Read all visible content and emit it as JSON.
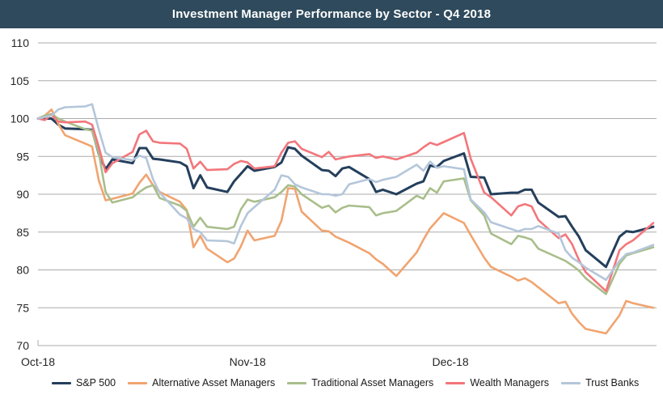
{
  "title": "Investment Manager Performance by Sector - Q4 2018",
  "colors": {
    "title_bar_bg": "#2E4A5C",
    "title_text": "#ffffff",
    "grid": "#ABABAB",
    "axis_text": "#262626"
  },
  "chart_data": {
    "type": "line",
    "title": "Investment Manager Performance by Sector - Q4 2018",
    "xlabel": "",
    "ylabel": "",
    "grid": "horizontal",
    "legend_position": "bottom",
    "y_axis": {
      "min": 70,
      "max": 110,
      "ticks": [
        110,
        105,
        100,
        95,
        90,
        85,
        80,
        75,
        70
      ]
    },
    "x_axis": {
      "ticks": [
        {
          "date": "2018-10-01",
          "label": "Oct-18"
        },
        {
          "date": "2018-11-01",
          "label": "Nov-18"
        },
        {
          "date": "2018-12-01",
          "label": "Dec-18"
        }
      ]
    },
    "style": {
      "grid_color": "#ABABAB"
    },
    "x_dates": [
      "2018-10-01",
      "2018-10-02",
      "2018-10-03",
      "2018-10-04",
      "2018-10-05",
      "2018-10-08",
      "2018-10-09",
      "2018-10-10",
      "2018-10-11",
      "2018-10-12",
      "2018-10-15",
      "2018-10-16",
      "2018-10-17",
      "2018-10-18",
      "2018-10-19",
      "2018-10-22",
      "2018-10-23",
      "2018-10-24",
      "2018-10-25",
      "2018-10-26",
      "2018-10-29",
      "2018-10-30",
      "2018-10-31",
      "2018-11-01",
      "2018-11-02",
      "2018-11-05",
      "2018-11-06",
      "2018-11-07",
      "2018-11-08",
      "2018-11-09",
      "2018-11-12",
      "2018-11-13",
      "2018-11-14",
      "2018-11-15",
      "2018-11-16",
      "2018-11-19",
      "2018-11-20",
      "2018-11-21",
      "2018-11-23",
      "2018-11-26",
      "2018-11-27",
      "2018-11-28",
      "2018-11-29",
      "2018-11-30",
      "2018-12-03",
      "2018-12-04",
      "2018-12-06",
      "2018-12-07",
      "2018-12-10",
      "2018-12-11",
      "2018-12-12",
      "2018-12-13",
      "2018-12-14",
      "2018-12-17",
      "2018-12-18",
      "2018-12-19",
      "2018-12-20",
      "2018-12-21",
      "2018-12-24",
      "2018-12-26",
      "2018-12-27",
      "2018-12-28",
      "2018-12-31"
    ],
    "series": [
      {
        "id": "sp500",
        "name": "S&P 500",
        "color": "#243F5C",
        "stroke_width": 3,
        "values": [
          100.0,
          100.0,
          100.0,
          99.2,
          98.7,
          98.6,
          98.5,
          95.3,
          93.3,
          94.6,
          94.1,
          96.1,
          96.1,
          94.7,
          94.6,
          94.2,
          93.7,
          90.8,
          92.5,
          90.9,
          90.3,
          91.7,
          92.7,
          93.7,
          93.1,
          93.6,
          94.2,
          96.2,
          96.0,
          95.1,
          93.2,
          93.1,
          92.4,
          93.4,
          93.6,
          92.0,
          90.3,
          90.6,
          90.0,
          91.4,
          91.7,
          93.8,
          93.6,
          94.4,
          95.4,
          92.3,
          92.2,
          90.0,
          90.2,
          90.2,
          90.6,
          90.6,
          88.9,
          87.0,
          87.1,
          85.7,
          84.4,
          82.6,
          80.4,
          84.4,
          85.1,
          85.0,
          85.7
        ]
      },
      {
        "id": "alternative-asset-managers",
        "name": "Alternative Asset Managers",
        "color": "#F0A470",
        "stroke_width": 2.6,
        "values": [
          100.0,
          100.4,
          101.2,
          99.3,
          97.8,
          96.7,
          96.3,
          91.8,
          89.2,
          89.4,
          90.1,
          91.5,
          92.6,
          91.2,
          90.3,
          89.0,
          87.9,
          83.0,
          84.5,
          82.8,
          81.0,
          81.5,
          83.1,
          85.2,
          83.9,
          84.5,
          86.5,
          90.8,
          90.7,
          87.7,
          85.2,
          85.1,
          84.4,
          84.0,
          83.6,
          82.2,
          81.4,
          80.8,
          79.2,
          82.3,
          84.0,
          85.5,
          86.5,
          87.5,
          86.2,
          84.6,
          81.6,
          80.4,
          79.1,
          78.6,
          78.9,
          78.4,
          77.7,
          75.6,
          75.8,
          74.2,
          73.1,
          72.2,
          71.6,
          74.0,
          75.9,
          75.6,
          75.0
        ]
      },
      {
        "id": "traditional-asset-managers",
        "name": "Traditional Asset Managers",
        "color": "#A9BE8B",
        "stroke_width": 2.6,
        "values": [
          100.0,
          100.4,
          100.6,
          100.0,
          99.6,
          98.6,
          98.4,
          95.4,
          90.3,
          88.9,
          89.6,
          90.3,
          90.9,
          91.2,
          89.5,
          88.5,
          87.8,
          85.7,
          86.9,
          85.7,
          85.4,
          85.7,
          88.0,
          89.3,
          89.0,
          89.6,
          90.3,
          91.2,
          91.0,
          90.0,
          88.2,
          88.5,
          87.6,
          88.2,
          88.5,
          88.3,
          87.2,
          87.5,
          87.8,
          89.8,
          89.4,
          90.8,
          90.2,
          91.7,
          92.1,
          89.2,
          87.2,
          84.8,
          83.4,
          84.5,
          84.3,
          84.0,
          82.8,
          81.6,
          81.2,
          80.6,
          79.9,
          78.9,
          76.8,
          80.8,
          81.9,
          82.2,
          83.0
        ]
      },
      {
        "id": "wealth-managers",
        "name": "Wealth Managers",
        "color": "#F3767B",
        "stroke_width": 2.6,
        "values": [
          100.0,
          99.8,
          100.5,
          99.6,
          99.5,
          99.6,
          99.2,
          96.2,
          92.9,
          94.1,
          95.6,
          97.9,
          98.4,
          97.0,
          96.8,
          96.7,
          96.0,
          93.4,
          94.3,
          93.2,
          93.3,
          94.0,
          94.4,
          94.2,
          93.4,
          93.7,
          95.5,
          96.8,
          97.0,
          96.0,
          94.9,
          95.6,
          94.6,
          94.8,
          95.0,
          95.3,
          94.8,
          95.0,
          94.6,
          95.5,
          96.2,
          96.8,
          96.5,
          96.9,
          98.1,
          94.7,
          90.2,
          89.6,
          87.2,
          88.4,
          88.7,
          88.4,
          86.6,
          84.2,
          84.7,
          83.4,
          81.3,
          79.7,
          77.2,
          82.6,
          83.4,
          83.9,
          86.2
        ]
      },
      {
        "id": "trust-banks",
        "name": "Trust Banks",
        "color": "#B4C6DA",
        "stroke_width": 2.6,
        "values": [
          100.0,
          100.2,
          100.4,
          101.2,
          101.5,
          101.6,
          101.9,
          98.5,
          95.5,
          94.9,
          94.5,
          95.1,
          94.8,
          92.0,
          90.2,
          87.3,
          86.8,
          85.4,
          85.0,
          83.9,
          83.8,
          83.5,
          85.8,
          87.5,
          88.3,
          90.6,
          92.5,
          92.3,
          91.3,
          90.9,
          90.0,
          90.0,
          89.8,
          90.0,
          91.3,
          92.0,
          91.6,
          91.9,
          92.3,
          93.9,
          93.1,
          94.3,
          93.5,
          93.7,
          93.3,
          89.3,
          87.6,
          86.3,
          85.4,
          85.1,
          85.4,
          85.4,
          85.8,
          84.8,
          82.6,
          81.6,
          81.0,
          80.3,
          78.7,
          81.2,
          82.1,
          82.3,
          83.3
        ]
      }
    ]
  }
}
